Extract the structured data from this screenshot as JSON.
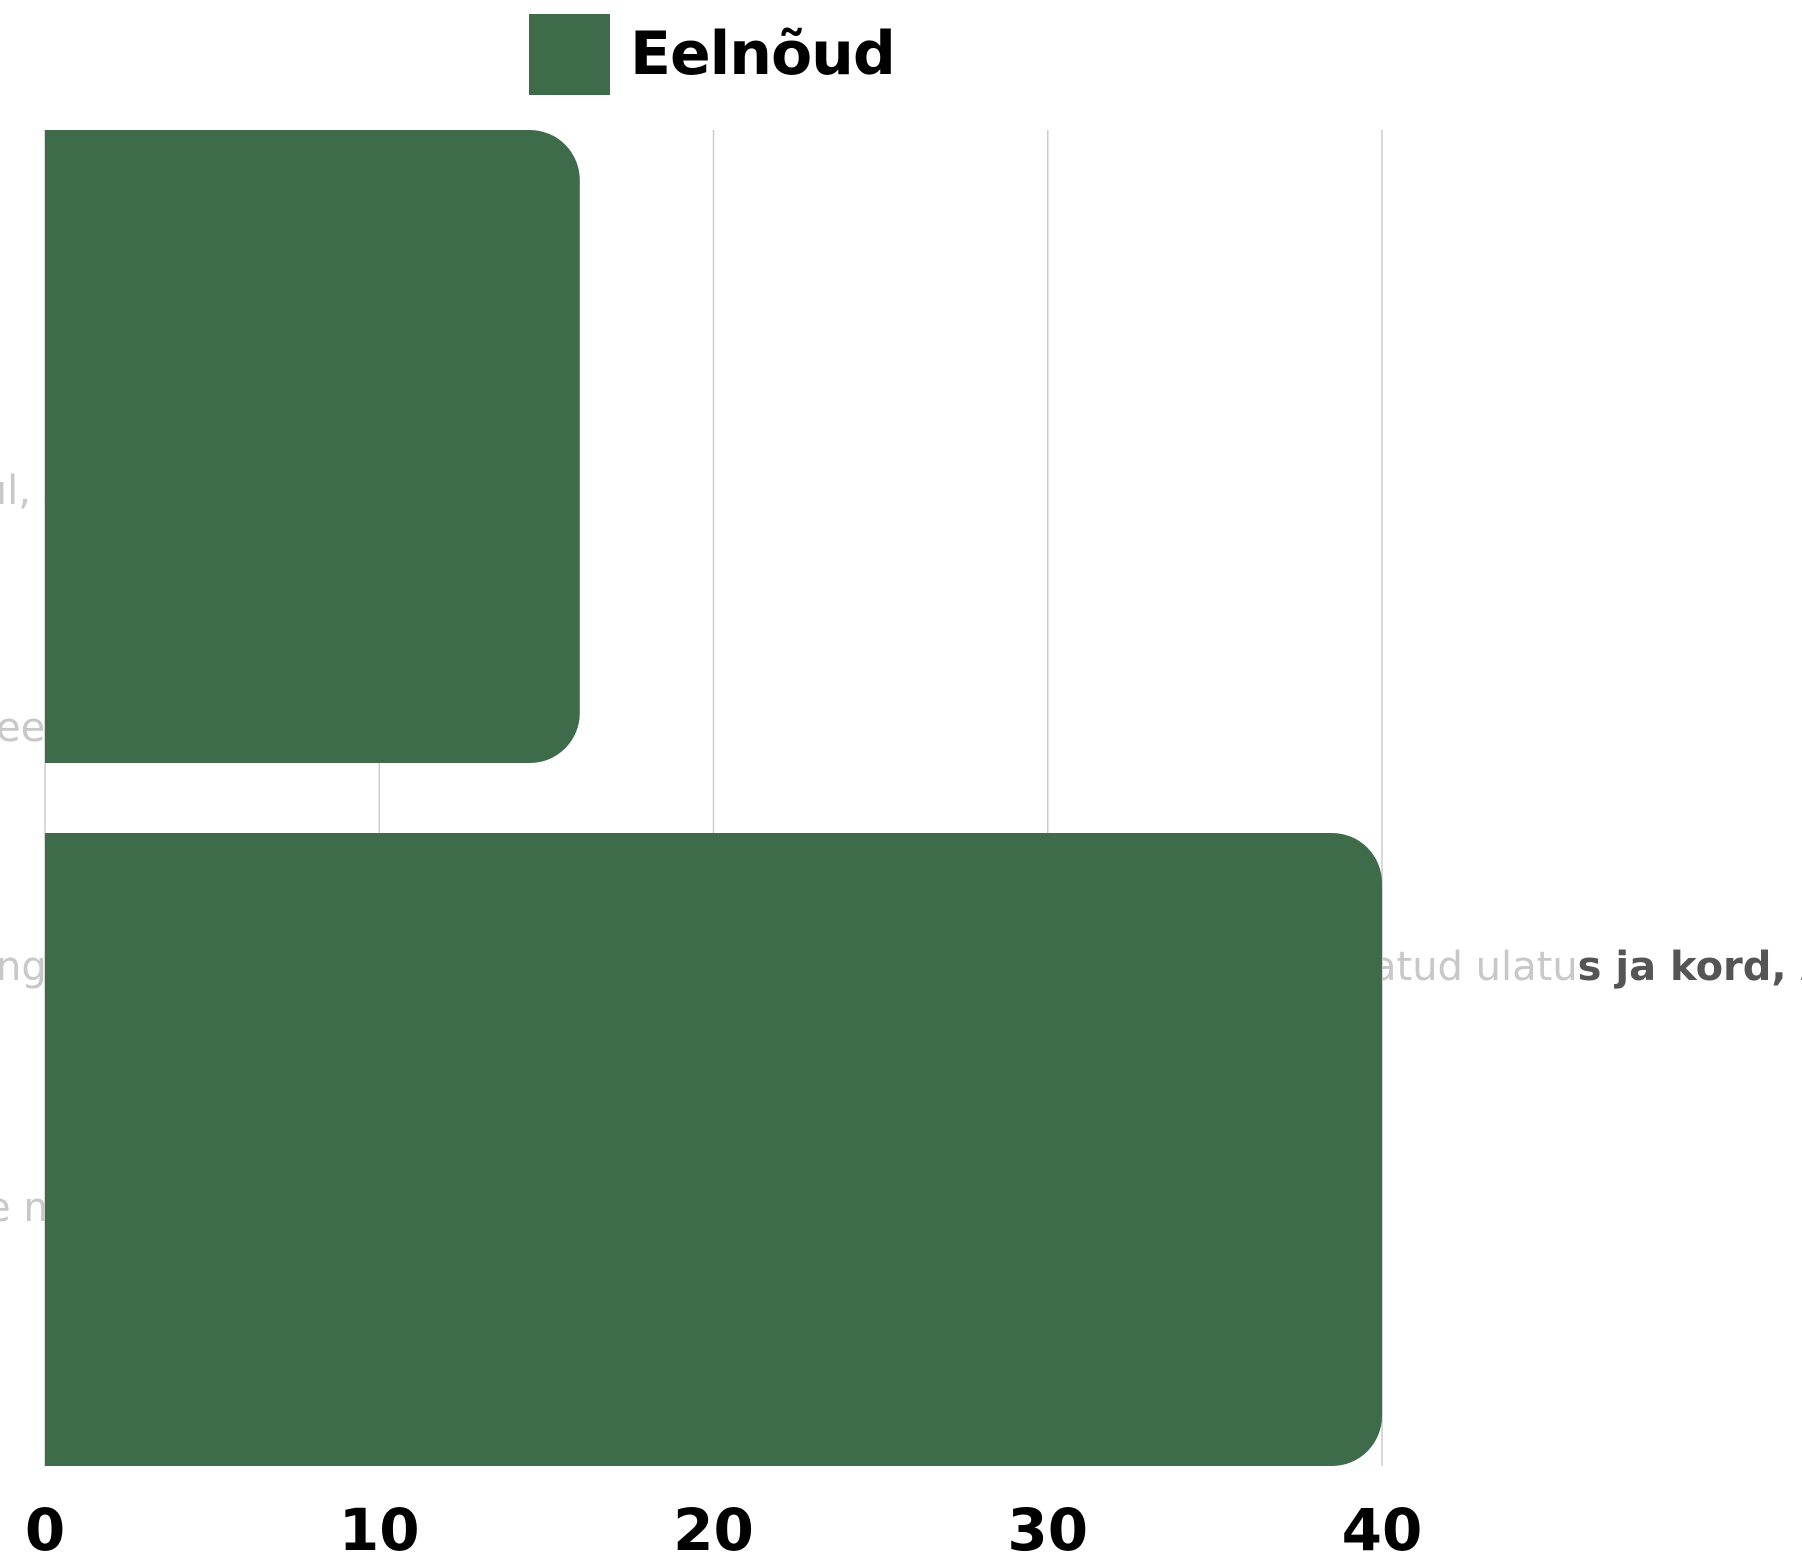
{
  "chart_data": {
    "type": "bar",
    "orientation": "horizontal",
    "series": [
      {
        "name": "Eelnõud",
        "values": [
          16,
          40
        ]
      }
    ],
    "xlim": [
      0,
      40
    ],
    "x_ticks": [
      "0",
      "10",
      "20",
      "30",
      "40"
    ],
    "grid": true,
    "legend_position": "top-center"
  },
  "colors": {
    "series": "#3e6b4a",
    "grid": "#cccccc",
    "faded_text": "#c8c8c8",
    "dark_text": "#555555"
  },
  "background_fragments": {
    "frag1": "ıl, A",
    "frag2": "ee",
    "frag3": "ng",
    "frag4_light": "atud ulatu",
    "frag4_dark": "s ja kord, A",
    "frag5": "e m"
  }
}
